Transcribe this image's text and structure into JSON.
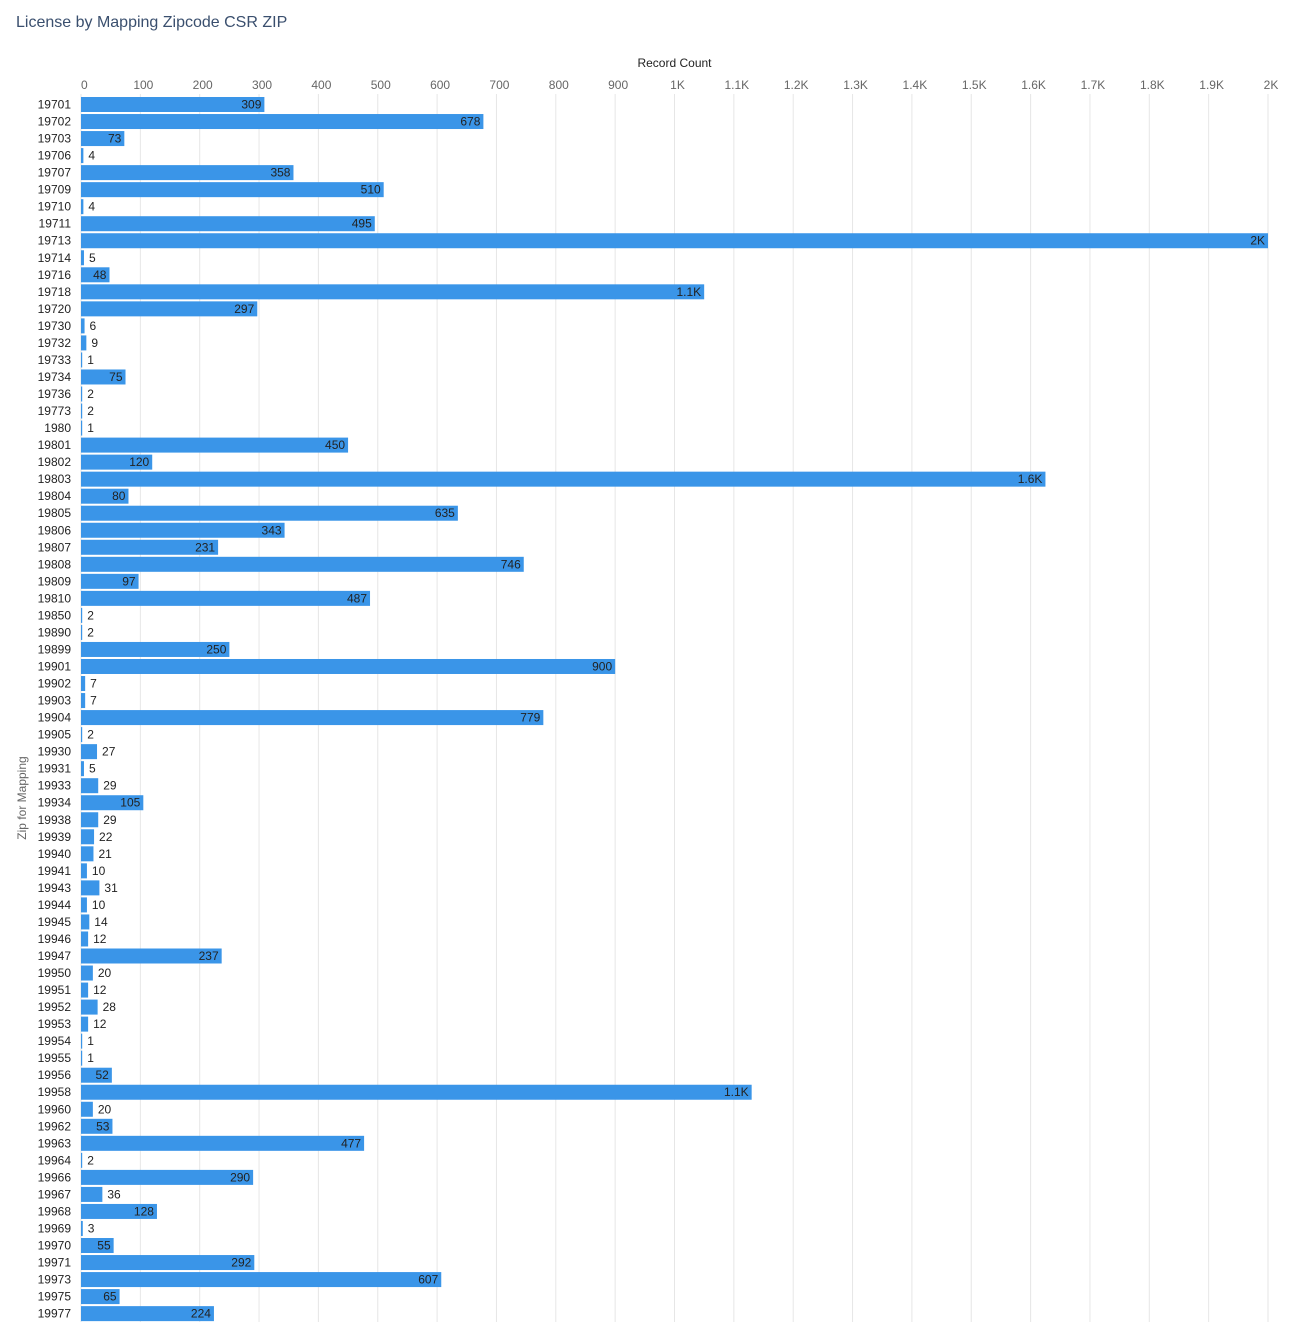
{
  "chart_data": {
    "type": "bar",
    "orientation": "horizontal",
    "title": "License by Mapping Zipcode CSR ZIP",
    "xlabel": "Record Count",
    "ylabel": "Zip for Mapping",
    "xlim": [
      0,
      2000
    ],
    "grid": true,
    "bar_color": "#3a95e8",
    "x_ticks": [
      "0",
      "100",
      "200",
      "300",
      "400",
      "500",
      "600",
      "700",
      "800",
      "900",
      "1K",
      "1.1K",
      "1.2K",
      "1.3K",
      "1.4K",
      "1.5K",
      "1.6K",
      "1.7K",
      "1.8K",
      "1.9K",
      "2K"
    ],
    "categories": [
      "19701",
      "19702",
      "19703",
      "19706",
      "19707",
      "19709",
      "19710",
      "19711",
      "19713",
      "19714",
      "19716",
      "19718",
      "19720",
      "19730",
      "19732",
      "19733",
      "19734",
      "19736",
      "19773",
      "1980",
      "19801",
      "19802",
      "19803",
      "19804",
      "19805",
      "19806",
      "19807",
      "19808",
      "19809",
      "19810",
      "19850",
      "19890",
      "19899",
      "19901",
      "19902",
      "19903",
      "19904",
      "19905",
      "19930",
      "19931",
      "19933",
      "19934",
      "19938",
      "19939",
      "19940",
      "19941",
      "19943",
      "19944",
      "19945",
      "19946",
      "19947",
      "19950",
      "19951",
      "19952",
      "19953",
      "19954",
      "19955",
      "19956",
      "19958",
      "19960",
      "19962",
      "19963",
      "19964",
      "19966",
      "19967",
      "19968",
      "19969",
      "19970",
      "19971",
      "19973",
      "19975",
      "19977"
    ],
    "values": [
      309,
      678,
      73,
      4,
      358,
      510,
      4,
      495,
      2000,
      5,
      48,
      1050,
      297,
      6,
      9,
      1,
      75,
      2,
      2,
      1,
      450,
      120,
      1625,
      80,
      635,
      343,
      231,
      746,
      97,
      487,
      2,
      2,
      250,
      900,
      7,
      7,
      779,
      2,
      27,
      5,
      29,
      105,
      29,
      22,
      21,
      10,
      31,
      10,
      14,
      12,
      237,
      20,
      12,
      28,
      12,
      1,
      1,
      52,
      1130,
      20,
      53,
      477,
      2,
      290,
      36,
      128,
      3,
      55,
      292,
      607,
      65,
      224
    ],
    "value_labels": [
      "309",
      "678",
      "73",
      "4",
      "358",
      "510",
      "4",
      "495",
      "2K",
      "5",
      "48",
      "1.1K",
      "297",
      "6",
      "9",
      "1",
      "75",
      "2",
      "2",
      "1",
      "450",
      "120",
      "1.6K",
      "80",
      "635",
      "343",
      "231",
      "746",
      "97",
      "487",
      "2",
      "2",
      "250",
      "900",
      "7",
      "7",
      "779",
      "2",
      "27",
      "5",
      "29",
      "105",
      "29",
      "22",
      "21",
      "10",
      "31",
      "10",
      "14",
      "12",
      "237",
      "20",
      "12",
      "28",
      "12",
      "1",
      "1",
      "52",
      "1.1K",
      "20",
      "53",
      "477",
      "2",
      "290",
      "36",
      "128",
      "3",
      "55",
      "292",
      "607",
      "65",
      "224"
    ]
  }
}
